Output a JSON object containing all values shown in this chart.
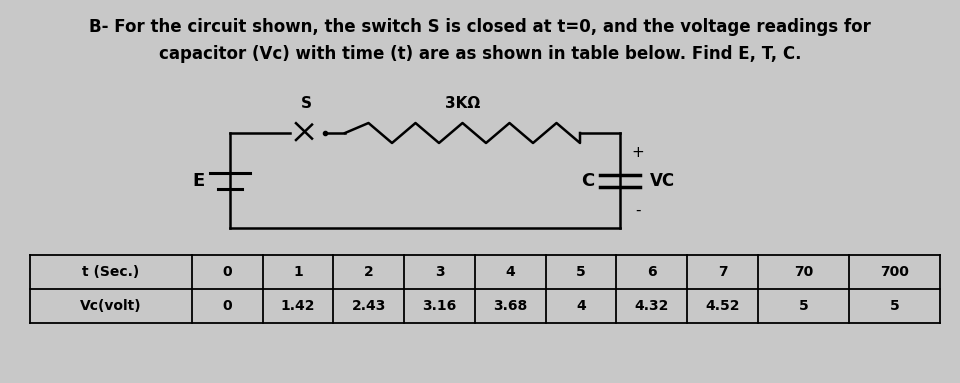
{
  "title_line1": "B- For the circuit shown, the switch S is closed at t=0, and the voltage readings for",
  "title_line2": "capacitor (Vc) with time (t) are as shown in table below. Find E, T, C.",
  "background_color": "#c8c8c8",
  "text_color": "#000000",
  "table_headers": [
    "t (Sec.)",
    "0",
    "1",
    "2",
    "3",
    "4",
    "5",
    "6",
    "7",
    "70",
    "700"
  ],
  "table_row": [
    "Vc(volt)",
    "0",
    "1.42",
    "2.43",
    "3.16",
    "3.68",
    "4",
    "4.32",
    "4.52",
    "5",
    "5"
  ],
  "circuit": {
    "resistor_label": "3KΩ",
    "switch_label": "S",
    "battery_label": "E",
    "capacitor_label": "C",
    "vc_label": "VC",
    "plus_label": "+",
    "minus_label": "-"
  },
  "col_widths_raw": [
    1.6,
    0.7,
    0.7,
    0.7,
    0.7,
    0.7,
    0.7,
    0.7,
    0.7,
    0.9,
    0.9
  ]
}
